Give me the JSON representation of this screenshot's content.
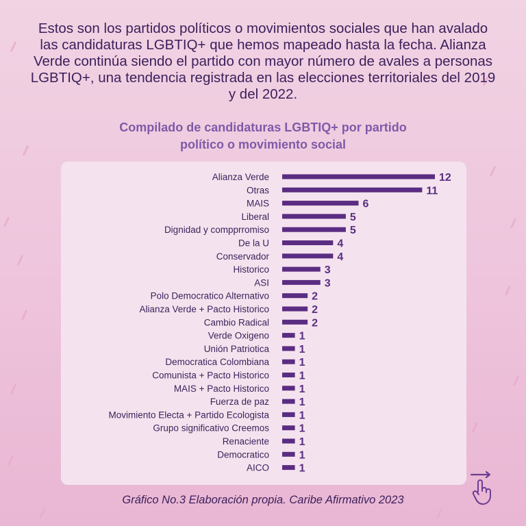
{
  "intro_text": "Estos son los partidos políticos o movimientos sociales que han avalado las candidaturas LGBTIQ+ que hemos mapeado hasta la fecha. Alianza Verde continúa siendo el partido con mayor número de avales a personas LGBTIQ+, una tendencia registrada en las elecciones territoriales del 2019 y del 2022.",
  "source_note": "Gráfico No.3 Elaboración propia. Caribe Afirmativo 2023",
  "colors": {
    "bar": "#5a2d82",
    "title": "#7e5aa8",
    "text": "#3b1f5b",
    "panel": "#f4e3ee"
  },
  "swipe_icon": "hand-pointer-swipe-icon",
  "chart_data": {
    "type": "bar",
    "orientation": "horizontal",
    "title": "Compilado de candidaturas LGBTIQ+ por partido político o movimiento social",
    "categories": [
      "Alianza Verde",
      "Otras",
      "MAIS",
      "Liberal",
      "Dignidad y compprromiso",
      "De la U",
      "Conservador",
      "Historico",
      "ASI",
      "Polo Democratico Alternativo",
      "Alianza Verde + Pacto Historico",
      "Cambio Radical",
      "Verde Oxigeno",
      "Unión Patriotica",
      "Democratica Colombiana",
      "Comunista + Pacto Historico",
      "MAIS + Pacto Historico",
      "Fuerza de paz",
      "Movimiento Electa + Partido Ecologista",
      "Grupo significativo Creemos",
      "Renaciente",
      "Democratico",
      "AICO"
    ],
    "values": [
      12,
      11,
      6,
      5,
      5,
      4,
      4,
      3,
      3,
      2,
      2,
      2,
      1,
      1,
      1,
      1,
      1,
      1,
      1,
      1,
      1,
      1,
      1
    ],
    "xlim": [
      0,
      12
    ],
    "grid": false,
    "data_labels": true
  }
}
